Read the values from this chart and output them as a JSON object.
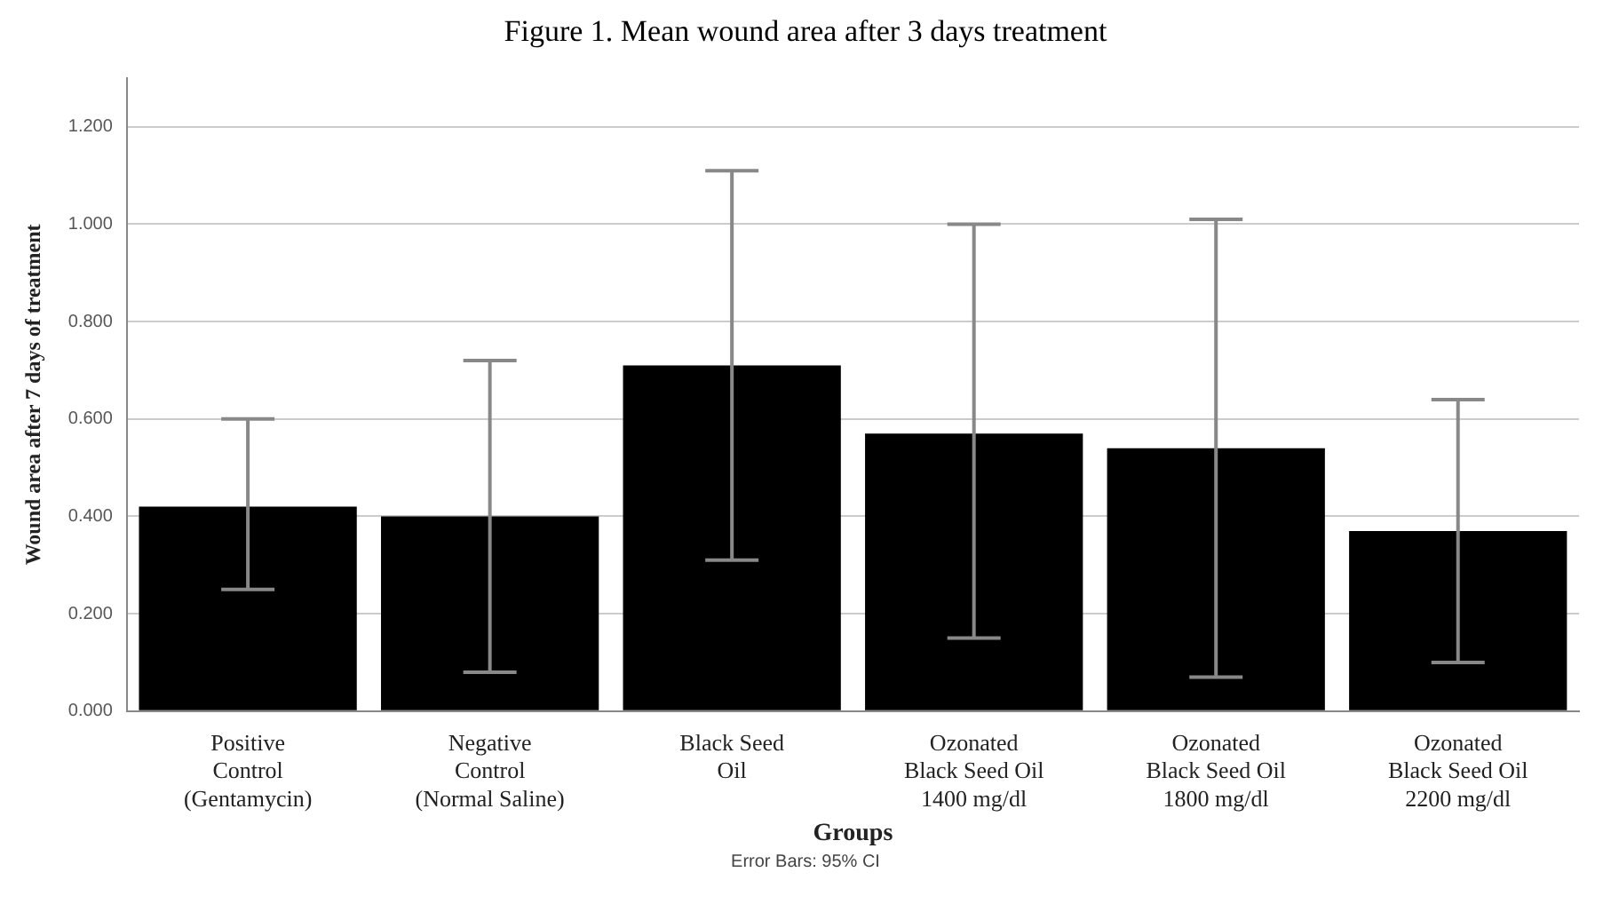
{
  "chart_data": {
    "type": "bar",
    "title": "Figure 1. Mean wound area after 3 days treatment",
    "xlabel": "Groups",
    "ylabel": "Wound area after 7 days of treatment",
    "categories": [
      "Positive\nControl\n(Gentamycin)",
      "Negative\nControl\n(Normal Saline)",
      "Black Seed\nOil",
      "Ozonated\nBlack Seed Oil\n1400 mg/dl",
      "Ozonated\nBlack Seed Oil\n1800 mg/dl",
      "Ozonated\nBlack Seed Oil\n2200 mg/dl"
    ],
    "values": [
      0.42,
      0.4,
      0.71,
      0.57,
      0.54,
      0.37
    ],
    "errors": [
      [
        0.25,
        0.6
      ],
      [
        0.08,
        0.72
      ],
      [
        0.31,
        1.11
      ],
      [
        0.15,
        1.0
      ],
      [
        0.07,
        1.01
      ],
      [
        0.1,
        0.64
      ]
    ],
    "color": "#000000",
    "ylim": [
      0,
      1.3
    ],
    "yticks": [
      {
        "value": 0,
        "label": "0.000"
      },
      {
        "value": 0.2,
        "label": "0.200"
      },
      {
        "value": 0.4,
        "label": "0.400"
      },
      {
        "value": 0.6,
        "label": "0.600"
      },
      {
        "value": 0.8,
        "label": "0.800"
      },
      {
        "value": 1,
        "label": "1.000"
      },
      {
        "value": 1.2,
        "label": "1.200"
      }
    ],
    "grid": "y",
    "legend": false,
    "annotations": [
      "Error Bars: 95% CI"
    ]
  }
}
